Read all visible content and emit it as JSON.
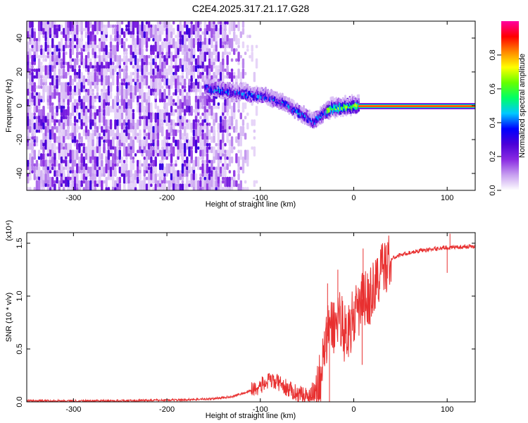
{
  "figure_title": "C2E4.2025.317.21.17.G28",
  "chart_data": [
    {
      "type": "heatmap",
      "title": "C2E4.2025.317.21.17.G28",
      "xlabel": "Height of straight line (km)",
      "ylabel": "Frequency (Hz)",
      "xlim": [
        -350,
        130
      ],
      "ylim": [
        -50,
        50
      ],
      "x_ticks": [
        -300,
        -200,
        -100,
        0,
        100
      ],
      "x_tick_labels": [
        "-300",
        "-200",
        "-100",
        "0",
        "100"
      ],
      "y_ticks": [
        -40,
        -20,
        0,
        20,
        40
      ],
      "y_tick_labels": [
        "-40",
        "-20",
        "0",
        "20",
        "40"
      ],
      "colorbar": {
        "label": "Normalized spectral amplitude",
        "range": [
          0,
          1
        ],
        "ticks": [
          0.0,
          0.2,
          0.4,
          0.6,
          0.8
        ],
        "tick_labels": [
          "0.0",
          "0.2",
          "0.4",
          "0.6",
          "0.8"
        ],
        "colors": [
          "#ffffff",
          "#c8a0f0",
          "#8a2be2",
          "#4b00d8",
          "#0000ff",
          "#00c8ff",
          "#00ff66",
          "#66ff00",
          "#ffff00",
          "#ff8800",
          "#ff0000",
          "#ff00a0"
        ]
      },
      "regions": {
        "noise_height_range": [
          -350,
          -125
        ],
        "noise_frequency_range": [
          -50,
          50
        ],
        "doppler_track_height": [
          -160,
          -95,
          -75,
          -55,
          -45,
          -35,
          -25,
          -10,
          0,
          5
        ],
        "doppler_track_frequency": [
          11,
          6,
          2,
          -5,
          -9,
          -5,
          -1,
          0,
          0.5,
          0.5
        ],
        "carrier_height_range": [
          5,
          130
        ],
        "carrier_frequency": 0
      }
    },
    {
      "type": "line",
      "xlabel": "Height of straight line (km)",
      "ylabel": "SNR (10 * v/v)",
      "y_scale_label": "(x10⁴)",
      "xlim": [
        -350,
        130
      ],
      "ylim": [
        0,
        1.6
      ],
      "x_ticks": [
        -300,
        -200,
        -100,
        0,
        100
      ],
      "x_tick_labels": [
        "-300",
        "-200",
        "-100",
        "0",
        "100"
      ],
      "y_ticks": [
        0,
        0.5,
        1.0,
        1.5
      ],
      "y_tick_labels": [
        "0.0",
        "0.5",
        "1.0",
        "1.5"
      ],
      "color": "#e83030",
      "series": [
        {
          "name": "SNR",
          "x": [
            -350,
            -250,
            -180,
            -150,
            -130,
            -115,
            -100,
            -90,
            -80,
            -70,
            -60,
            -50,
            -45,
            -40,
            -35,
            -30,
            -25,
            -20,
            -15,
            -10,
            -5,
            0,
            5,
            10,
            15,
            20,
            25,
            30,
            35,
            40,
            50,
            60,
            70,
            80,
            90,
            100,
            110,
            120,
            130
          ],
          "y": [
            0.01,
            0.01,
            0.02,
            0.03,
            0.05,
            0.09,
            0.15,
            0.2,
            0.18,
            0.12,
            0.08,
            0.06,
            0.05,
            0.1,
            0.28,
            0.55,
            0.75,
            0.7,
            0.85,
            0.65,
            0.7,
            0.8,
            0.85,
            1.0,
            0.95,
            1.05,
            1.15,
            1.25,
            1.3,
            1.35,
            1.39,
            1.41,
            1.43,
            1.44,
            1.45,
            1.46,
            1.46,
            1.47,
            1.47
          ]
        }
      ],
      "spikes": [
        {
          "x": -45,
          "y": 0.14
        },
        {
          "x": -28,
          "y": 1.12
        },
        {
          "x": -26,
          "y": 0.0
        },
        {
          "x": -17,
          "y": 1.25
        },
        {
          "x": 10,
          "y": 1.45
        },
        {
          "x": 9,
          "y": 0.35
        },
        {
          "x": 100,
          "y": 1.22
        },
        {
          "x": 103,
          "y": 1.59
        }
      ]
    }
  ]
}
